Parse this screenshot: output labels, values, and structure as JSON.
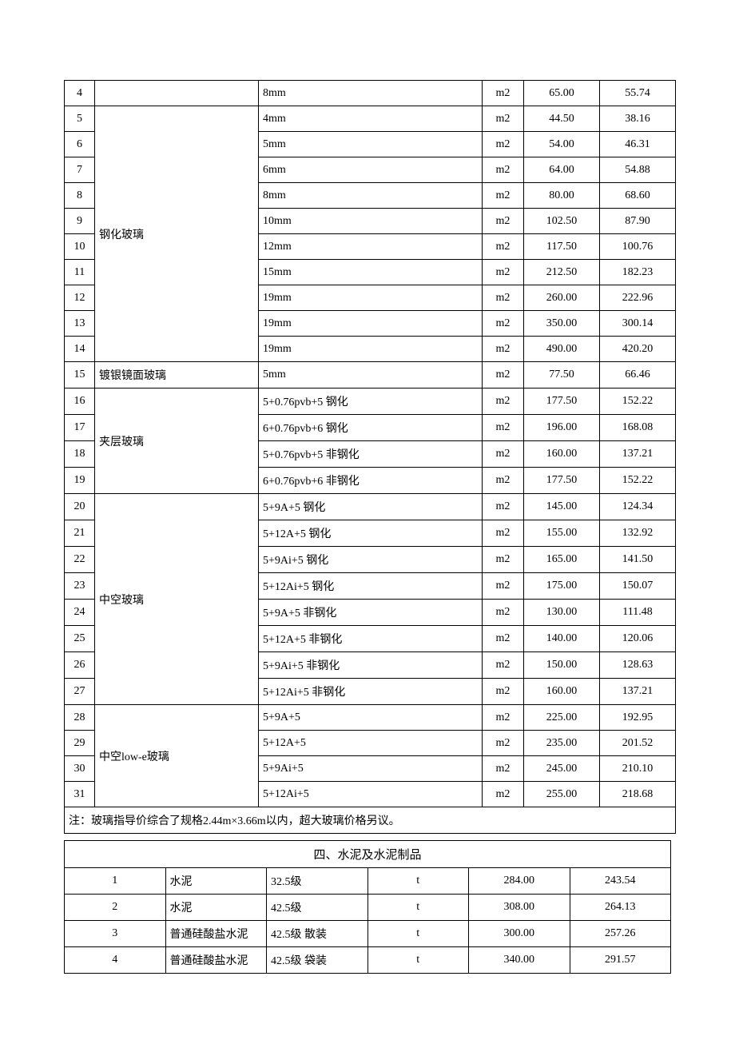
{
  "glass_table": {
    "rows": [
      {
        "idx": "4",
        "name": "",
        "spec": "8mm",
        "unit": "m2",
        "p1": "65.00",
        "p2": "55.74"
      },
      {
        "idx": "5",
        "name": "",
        "spec": "4mm",
        "unit": "m2",
        "p1": "44.50",
        "p2": "38.16"
      },
      {
        "idx": "6",
        "name": "",
        "spec": "5mm",
        "unit": "m2",
        "p1": "54.00",
        "p2": "46.31"
      },
      {
        "idx": "7",
        "name": "",
        "spec": "6mm",
        "unit": "m2",
        "p1": "64.00",
        "p2": "54.88"
      },
      {
        "idx": "8",
        "name": "",
        "spec": "8mm",
        "unit": "m2",
        "p1": "80.00",
        "p2": "68.60"
      },
      {
        "idx": "9",
        "name": "",
        "spec": "10mm",
        "unit": "m2",
        "p1": "102.50",
        "p2": "87.90"
      },
      {
        "idx": "10",
        "name": "",
        "spec": "12mm",
        "unit": "m2",
        "p1": "117.50",
        "p2": "100.76"
      },
      {
        "idx": "11",
        "name": "",
        "spec": "15mm",
        "unit": "m2",
        "p1": "212.50",
        "p2": "182.23"
      },
      {
        "idx": "12",
        "name": "",
        "spec": "19mm",
        "unit": "m2",
        "p1": "260.00",
        "p2": "222.96"
      },
      {
        "idx": "13",
        "name": "",
        "spec": "19mm",
        "unit": "m2",
        "p1": "350.00",
        "p2": "300.14"
      },
      {
        "idx": "14",
        "name": "",
        "spec": "19mm",
        "unit": "m2",
        "p1": "490.00",
        "p2": "420.20"
      },
      {
        "idx": "15",
        "name": "镀银镜面玻璃",
        "spec": "5mm",
        "unit": "m2",
        "p1": "77.50",
        "p2": "66.46"
      },
      {
        "idx": "16",
        "name": "",
        "spec": "5+0.76pvb+5 钢化",
        "unit": "m2",
        "p1": "177.50",
        "p2": "152.22"
      },
      {
        "idx": "17",
        "name": "",
        "spec": "6+0.76pvb+6 钢化",
        "unit": "m2",
        "p1": "196.00",
        "p2": "168.08"
      },
      {
        "idx": "18",
        "name": "",
        "spec": "5+0.76pvb+5 非钢化",
        "unit": "m2",
        "p1": "160.00",
        "p2": "137.21"
      },
      {
        "idx": "19",
        "name": "",
        "spec": "6+0.76pvb+6 非钢化",
        "unit": "m2",
        "p1": "177.50",
        "p2": "152.22"
      },
      {
        "idx": "20",
        "name": "",
        "spec": "5+9A+5 钢化",
        "unit": "m2",
        "p1": "145.00",
        "p2": "124.34"
      },
      {
        "idx": "21",
        "name": "",
        "spec": "5+12A+5 钢化",
        "unit": "m2",
        "p1": "155.00",
        "p2": "132.92"
      },
      {
        "idx": "22",
        "name": "",
        "spec": "5+9Ai+5 钢化",
        "unit": "m2",
        "p1": "165.00",
        "p2": "141.50"
      },
      {
        "idx": "23",
        "name": "",
        "spec": "5+12Ai+5 钢化",
        "unit": "m2",
        "p1": "175.00",
        "p2": "150.07"
      },
      {
        "idx": "24",
        "name": "",
        "spec": "5+9A+5 非钢化",
        "unit": "m2",
        "p1": "130.00",
        "p2": "111.48"
      },
      {
        "idx": "25",
        "name": "",
        "spec": "5+12A+5 非钢化",
        "unit": "m2",
        "p1": "140.00",
        "p2": "120.06"
      },
      {
        "idx": "26",
        "name": "",
        "spec": "5+9Ai+5 非钢化",
        "unit": "m2",
        "p1": "150.00",
        "p2": "128.63"
      },
      {
        "idx": "27",
        "name": "",
        "spec": "5+12Ai+5 非钢化",
        "unit": "m2",
        "p1": "160.00",
        "p2": "137.21"
      },
      {
        "idx": "28",
        "name": "",
        "spec": "5+9A+5",
        "unit": "m2",
        "p1": "225.00",
        "p2": "192.95"
      },
      {
        "idx": "29",
        "name": "",
        "spec": "5+12A+5",
        "unit": "m2",
        "p1": "235.00",
        "p2": "201.52"
      },
      {
        "idx": "30",
        "name": "",
        "spec": "5+9Ai+5",
        "unit": "m2",
        "p1": "245.00",
        "p2": "210.10"
      },
      {
        "idx": "31",
        "name": "",
        "spec": "5+12Ai+5",
        "unit": "m2",
        "p1": "255.00",
        "p2": "218.68"
      }
    ],
    "merged_names": {
      "钢化玻璃": {
        "start": 1,
        "span": 10
      },
      "夹层玻璃": {
        "start": 12,
        "span": 4
      },
      "中空玻璃": {
        "start": 16,
        "span": 8
      },
      "中空low-e玻璃": {
        "start": 24,
        "span": 4
      }
    }
  },
  "note_text": "注：玻璃指导价综合了规格2.44m×3.66m以内，超大玻璃价格另议。",
  "section_header": "四、水泥及水泥制品",
  "cement_table": {
    "rows": [
      {
        "idx": "1",
        "name": "水泥",
        "spec": "32.5级",
        "unit": "t",
        "p1": "284.00",
        "p2": "243.54"
      },
      {
        "idx": "2",
        "name": "水泥",
        "spec": "42.5级",
        "unit": "t",
        "p1": "308.00",
        "p2": "264.13"
      },
      {
        "idx": "3",
        "name": "普通硅酸盐水泥",
        "spec": "42.5级 散装",
        "unit": "t",
        "p1": "300.00",
        "p2": "257.26"
      },
      {
        "idx": "4",
        "name": "普通硅酸盐水泥",
        "spec": "42.5级 袋装",
        "unit": "t",
        "p1": "340.00",
        "p2": "291.57"
      }
    ]
  },
  "colors": {
    "border": "#000000",
    "background": "#ffffff",
    "text": "#000000"
  },
  "font": {
    "family": "SimSun",
    "size_body": 14,
    "size_header": 15
  }
}
